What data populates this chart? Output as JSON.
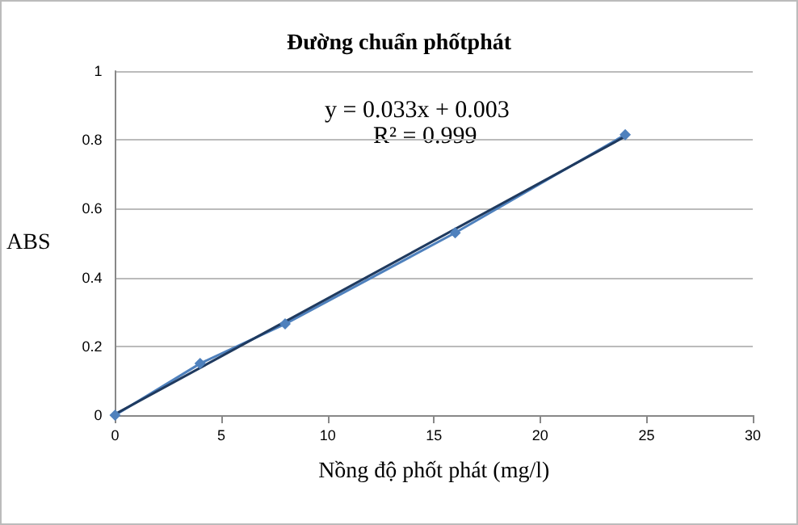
{
  "chart_data": {
    "type": "line",
    "title": "Đường chuẩn phốtphát",
    "xlabel": "Nồng độ phốt phát (mg/l)",
    "ylabel": "ABS",
    "x": [
      0,
      4,
      8,
      16,
      24
    ],
    "series": [
      {
        "values": [
          0,
          0.15,
          0.265,
          0.53,
          0.815
        ],
        "color": "#4f81bd",
        "marker": "diamond"
      },
      {
        "type": "line",
        "x": [
          0,
          24
        ],
        "values": [
          0.003,
          0.81
        ],
        "color": "#1f3a5f",
        "marker": "none"
      }
    ],
    "annotations": [
      "y = 0.033x + 0.003",
      "R² = 0.999"
    ],
    "xlim": [
      0,
      30
    ],
    "xticks": [
      0,
      5,
      10,
      15,
      20,
      25,
      30
    ],
    "ylim": [
      0,
      1
    ],
    "yticks": [
      0,
      0.2,
      0.4,
      0.6,
      0.8,
      1
    ],
    "grid": "y"
  }
}
